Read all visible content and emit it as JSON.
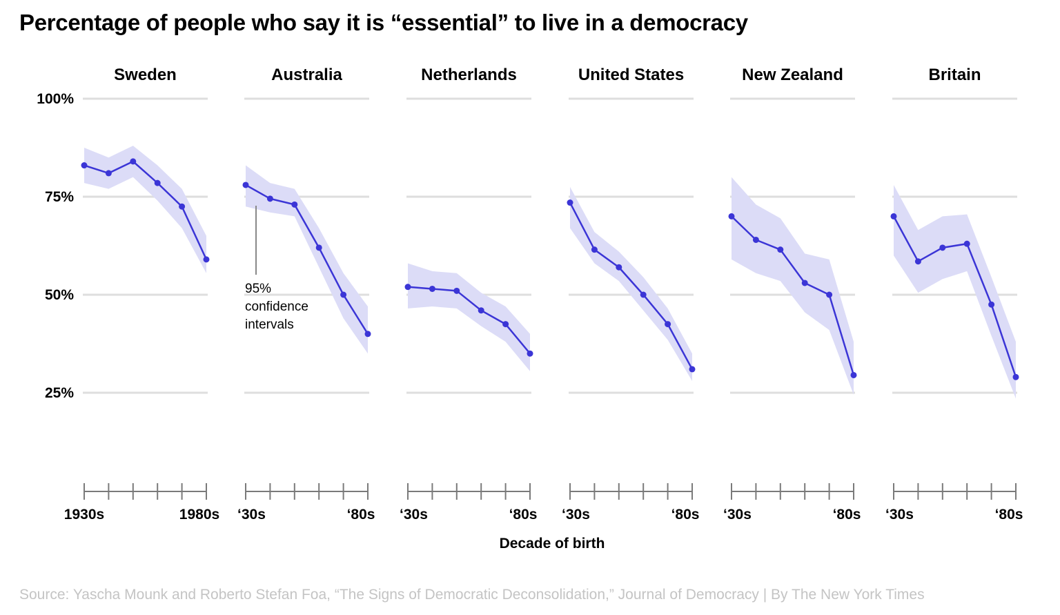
{
  "chart_data": {
    "type": "line",
    "title": "Percentage of people who say it is “essential” to live in a democracy",
    "xlabel": "Decade of birth",
    "ylabel": "",
    "y_tick_labels": [
      "100%",
      "75%",
      "50%",
      "25%"
    ],
    "y_ticks": [
      100,
      75,
      50,
      25
    ],
    "ylim": [
      0,
      100
    ],
    "grid": true,
    "x": [
      1930,
      1940,
      1950,
      1960,
      1970,
      1980
    ],
    "annotation": "95%\nconfidence\nintervals",
    "colors": {
      "line": "#3b35d6",
      "band": "#dcdcf7",
      "grid": "#dedede",
      "axis": "#7a7a7a"
    },
    "panels": [
      {
        "name": "Sweden",
        "x_labels": [
          "1930s",
          "1980s"
        ],
        "values": [
          83,
          81,
          84,
          78.5,
          72.5,
          59
        ],
        "lower": [
          78.5,
          77,
          80,
          74,
          67,
          55.5
        ],
        "upper": [
          87.5,
          85,
          88,
          83,
          77,
          65
        ]
      },
      {
        "name": "Australia",
        "x_labels": [
          "‘30s",
          "‘80s"
        ],
        "values": [
          78,
          74.5,
          73,
          62,
          50,
          40
        ],
        "lower": [
          72.5,
          71,
          70,
          57,
          44,
          35
        ],
        "upper": [
          83,
          78.5,
          77,
          67,
          55.5,
          47
        ]
      },
      {
        "name": "Netherlands",
        "x_labels": [
          "‘30s",
          "‘80s"
        ],
        "values": [
          52,
          51.5,
          51,
          46,
          42.5,
          35
        ],
        "lower": [
          46.5,
          47,
          46.5,
          42,
          38,
          30.5
        ],
        "upper": [
          58,
          56,
          55.5,
          50.5,
          47,
          40
        ]
      },
      {
        "name": "United States",
        "x_labels": [
          "‘30s",
          "‘80s"
        ],
        "values": [
          73.5,
          61.5,
          57,
          50,
          42.5,
          31
        ],
        "lower": [
          67,
          58,
          53.5,
          46,
          38.5,
          28
        ],
        "upper": [
          77.5,
          66,
          61,
          54.5,
          46.5,
          35
        ]
      },
      {
        "name": "New Zealand",
        "x_labels": [
          "‘30s",
          "‘80s"
        ],
        "values": [
          70,
          64,
          61.5,
          53,
          50,
          29.5
        ],
        "lower": [
          59,
          55.5,
          53.5,
          45.5,
          41,
          24.5
        ],
        "upper": [
          80,
          73,
          69.5,
          60.5,
          59,
          38
        ]
      },
      {
        "name": "Britain",
        "x_labels": [
          "‘30s",
          "‘80s"
        ],
        "values": [
          70,
          58.5,
          62,
          63,
          47.5,
          29
        ],
        "lower": [
          60,
          50.5,
          54,
          56,
          39.5,
          23.5
        ],
        "upper": [
          78,
          66.5,
          70,
          70.5,
          54.5,
          38
        ]
      }
    ]
  },
  "source": "Source: Yascha Mounk and Roberto Stefan Foa, “The Signs of Democratic Deconsolidation,” Journal of Democracy | By The New York Times"
}
